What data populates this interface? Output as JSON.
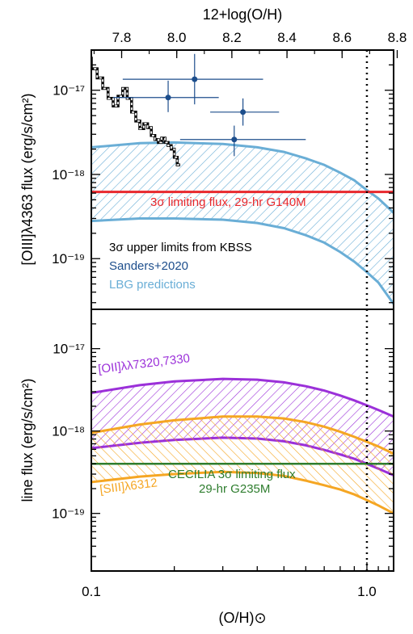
{
  "chart_data": [
    {
      "type": "line",
      "panel": "top",
      "xscale": "log",
      "yscale": "log",
      "xlim": [
        0.1,
        1.25
      ],
      "ylim": [
        2.5e-20,
        3e-17
      ],
      "xlabel_top": "12+log(O/H)",
      "ylabel": "[OIII]λ4363 flux (erg/s/cm²)",
      "top_ticks": [
        "7.8",
        "8.0",
        "8.2",
        "8.4",
        "8.6",
        "8.8"
      ],
      "y_ticks": [
        "10⁻¹⁷",
        "10⁻¹⁸",
        "10⁻¹⁹"
      ],
      "vline_x": 1.0,
      "limit_line": {
        "label": "3σ limiting flux, 29-hr G140M",
        "y": 6.2e-19,
        "color": "#e8282d"
      },
      "band": {
        "name": "LBG predictions",
        "color": "#6aaed6",
        "x": [
          0.1,
          0.15,
          0.2,
          0.3,
          0.4,
          0.5,
          0.6,
          0.7,
          0.8,
          0.9,
          1.0,
          1.1,
          1.25
        ],
        "upper": [
          2.1e-18,
          2.35e-18,
          2.4e-18,
          2.3e-18,
          2.1e-18,
          1.85e-18,
          1.55e-18,
          1.3e-18,
          1.05e-18,
          8.5e-19,
          6.5e-19,
          5.2e-19,
          3.5e-19
        ],
        "lower": [
          2.8e-19,
          3e-19,
          3e-19,
          2.9e-19,
          2.65e-19,
          2.3e-19,
          1.9e-19,
          1.55e-19,
          1.2e-19,
          9.2e-20,
          6.9e-20,
          5.2e-20,
          2.9e-20
        ]
      },
      "kbss": {
        "name": "3σ upper limits from KBSS",
        "x": [
          0.1,
          0.1,
          0.105,
          0.105,
          0.11,
          0.11,
          0.115,
          0.115,
          0.12,
          0.12,
          0.125,
          0.125,
          0.13,
          0.13,
          0.135,
          0.135,
          0.14,
          0.14,
          0.145,
          0.145,
          0.15,
          0.15,
          0.155,
          0.155,
          0.16,
          0.16,
          0.165,
          0.165,
          0.17,
          0.17,
          0.175,
          0.175,
          0.18,
          0.18,
          0.185,
          0.185,
          0.19,
          0.19,
          0.195,
          0.195,
          0.2,
          0.2,
          0.205,
          0.205,
          0.21
        ],
        "y": [
          2.5e-17,
          1.8e-17,
          1.8e-17,
          1.4e-17,
          1.4e-17,
          1.05e-17,
          1.05e-17,
          8e-18,
          8e-18,
          6.5e-18,
          6.5e-18,
          8.5e-18,
          8.5e-18,
          1.05e-17,
          1.05e-17,
          8e-18,
          8e-18,
          5.5e-18,
          5.5e-18,
          4.3e-18,
          4.3e-18,
          3.5e-18,
          3.5e-18,
          4e-18,
          4e-18,
          3.6e-18,
          3.6e-18,
          2.9e-18,
          2.9e-18,
          2.6e-18,
          2.6e-18,
          2.4e-18,
          2.4e-18,
          2.7e-18,
          2.7e-18,
          2.4e-18,
          2.4e-18,
          2.2e-18,
          2.2e-18,
          2e-18,
          2e-18,
          1.6e-18,
          1.6e-18,
          1.3e-18,
          1.3e-18
        ]
      },
      "sanders": {
        "name": "Sanders+2020",
        "color": "#1d4e8c",
        "points": [
          {
            "x": 0.237,
            "y": 1.35e-17,
            "xerr": [
              0.13,
              0.42
            ],
            "yerr": [
              6.8e-18,
              2.7e-17
            ]
          },
          {
            "x": 0.19,
            "y": 8.2e-18,
            "xerr": [
              0.12,
              0.29
            ],
            "yerr": [
              5.5e-18,
              1.3e-17
            ]
          },
          {
            "x": 0.355,
            "y": 5.5e-18,
            "xerr": [
              0.27,
              0.48
            ],
            "yerr": [
              3.8e-18,
              8e-18
            ]
          },
          {
            "x": 0.33,
            "y": 2.6e-18,
            "xerr": [
              0.21,
              0.6
            ],
            "yerr": [
              1.65e-18,
              3.8e-18
            ]
          }
        ]
      },
      "legend": [
        {
          "label": "3σ upper limits from KBSS",
          "color": "#000000"
        },
        {
          "label": "Sanders+2020",
          "color": "#1d4e8c"
        },
        {
          "label": "LBG predictions",
          "color": "#6aaed6"
        }
      ]
    },
    {
      "type": "line",
      "panel": "bottom",
      "xscale": "log",
      "yscale": "log",
      "xlim": [
        0.1,
        1.25
      ],
      "ylim": [
        2e-20,
        3e-17
      ],
      "xlabel": "(O/H)⊙",
      "ylabel": "line flux (erg/s/cm²)",
      "x_ticks": [
        "0.1",
        "1.0"
      ],
      "y_ticks": [
        "10⁻¹⁷",
        "10⁻¹⁸",
        "10⁻¹⁹"
      ],
      "vline_x": 1.0,
      "limit_line": {
        "label": "CECILIA 3σ limiting flux",
        "label2": "29-hr G235M",
        "y": 4e-19,
        "color": "#2e7d2e"
      },
      "bands": [
        {
          "name": "[OII]λλ7320,7330",
          "color": "#9b30d9",
          "x": [
            0.1,
            0.15,
            0.2,
            0.3,
            0.4,
            0.5,
            0.6,
            0.7,
            0.8,
            0.9,
            1.0,
            1.1,
            1.25
          ],
          "upper": [
            2.9e-18,
            3.6e-18,
            4e-18,
            4.3e-18,
            4.2e-18,
            3.9e-18,
            3.5e-18,
            3.1e-18,
            2.7e-18,
            2.35e-18,
            2.05e-18,
            1.8e-18,
            1.5e-18
          ],
          "lower": [
            6.2e-19,
            7.2e-19,
            7.8e-19,
            8.3e-19,
            8.1e-19,
            7.5e-19,
            6.7e-19,
            5.9e-19,
            5.2e-19,
            4.6e-19,
            4e-19,
            3.5e-19,
            2.9e-19
          ]
        },
        {
          "name": "[SIII]λ6312",
          "color": "#f5a623",
          "x": [
            0.1,
            0.15,
            0.2,
            0.3,
            0.4,
            0.5,
            0.6,
            0.7,
            0.8,
            0.9,
            1.0,
            1.1,
            1.25
          ],
          "upper": [
            9.5e-19,
            1.2e-18,
            1.35e-18,
            1.5e-18,
            1.5e-18,
            1.42e-18,
            1.28e-18,
            1.13e-18,
            9.8e-19,
            8.5e-19,
            7.4e-19,
            6.5e-19,
            5.3e-19
          ],
          "lower": [
            2.4e-19,
            2.8e-19,
            3e-19,
            3.2e-19,
            3.1e-19,
            2.85e-19,
            2.5e-19,
            2.2e-19,
            1.95e-19,
            1.7e-19,
            1.45e-19,
            1.25e-19,
            1e-19
          ]
        }
      ]
    }
  ]
}
